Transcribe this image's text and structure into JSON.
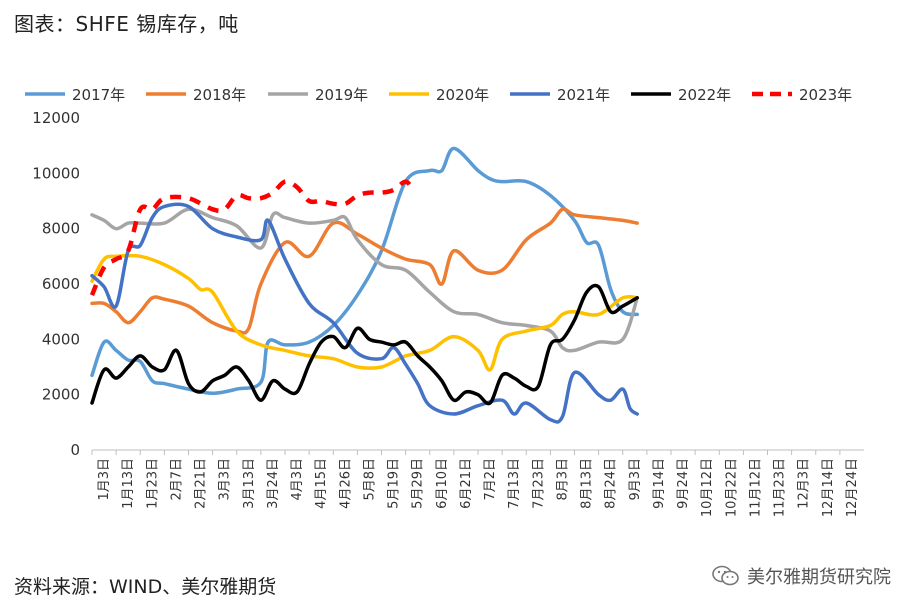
{
  "figure_title": "图表：SHFE 锡库存，吨",
  "source": "资料来源：WIND、美尔雅期货",
  "watermark": "美尔雅期货研究院",
  "watermark_icon": "wechat-icon",
  "chart_data": {
    "type": "line",
    "xlabel": "",
    "ylabel": "",
    "ylim": [
      0,
      12000
    ],
    "yticks": [
      0,
      2000,
      4000,
      6000,
      8000,
      10000,
      12000
    ],
    "grid": false,
    "legend_position": "top",
    "x_ticks": [
      "1月3日",
      "1月13日",
      "1月23日",
      "2月7日",
      "2月21日",
      "3月3日",
      "3月13日",
      "3月24日",
      "4月3日",
      "4月15日",
      "4月26日",
      "5月8日",
      "5月19日",
      "5月29日",
      "6月10日",
      "6月21日",
      "7月2日",
      "7月13日",
      "7月23日",
      "8月3日",
      "8月13日",
      "8月24日",
      "9月3日",
      "9月14日",
      "9月24日",
      "10月12日",
      "10月22日",
      "11月12日",
      "11月23日",
      "12月3日",
      "12月14日",
      "12月24日"
    ],
    "x_range": [
      0,
      32
    ],
    "series": [
      {
        "name": "2017年",
        "color": "#5B9BD5",
        "dash": false,
        "points": [
          [
            0,
            2700
          ],
          [
            0.5,
            3900
          ],
          [
            1,
            3600
          ],
          [
            1.5,
            3250
          ],
          [
            2,
            3200
          ],
          [
            2.5,
            2500
          ],
          [
            3,
            2400
          ],
          [
            4,
            2200
          ],
          [
            5,
            2050
          ],
          [
            6,
            2200
          ],
          [
            7,
            2450
          ],
          [
            7.3,
            3900
          ],
          [
            8,
            3800
          ],
          [
            9,
            3900
          ],
          [
            10,
            4500
          ],
          [
            11,
            5600
          ],
          [
            12,
            7200
          ],
          [
            13,
            9700
          ],
          [
            14,
            10100
          ],
          [
            14.5,
            10100
          ],
          [
            15,
            10900
          ],
          [
            16,
            10100
          ],
          [
            16.5,
            9800
          ],
          [
            17,
            9700
          ],
          [
            18,
            9700
          ],
          [
            19,
            9200
          ],
          [
            20,
            8300
          ],
          [
            20.5,
            7500
          ],
          [
            21,
            7400
          ],
          [
            21.5,
            5800
          ],
          [
            22,
            5000
          ],
          [
            22.6,
            4900
          ]
        ]
      },
      {
        "name": "2018年",
        "color": "#ED7D31",
        "dash": false,
        "points": [
          [
            0,
            5300
          ],
          [
            0.5,
            5300
          ],
          [
            1,
            5000
          ],
          [
            1.5,
            4600
          ],
          [
            2,
            5000
          ],
          [
            2.5,
            5500
          ],
          [
            3,
            5450
          ],
          [
            4,
            5200
          ],
          [
            5,
            4600
          ],
          [
            6,
            4300
          ],
          [
            6.5,
            4400
          ],
          [
            7,
            6000
          ],
          [
            8,
            7500
          ],
          [
            9,
            7000
          ],
          [
            10,
            8200
          ],
          [
            11,
            7800
          ],
          [
            12,
            7300
          ],
          [
            13,
            6900
          ],
          [
            14,
            6700
          ],
          [
            14.5,
            6000
          ],
          [
            15,
            7200
          ],
          [
            16,
            6500
          ],
          [
            17,
            6500
          ],
          [
            18,
            7600
          ],
          [
            19,
            8200
          ],
          [
            19.5,
            8700
          ],
          [
            20,
            8500
          ],
          [
            21,
            8400
          ],
          [
            22,
            8300
          ],
          [
            22.6,
            8200
          ]
        ]
      },
      {
        "name": "2019年",
        "color": "#A5A5A5",
        "dash": false,
        "points": [
          [
            0,
            8500
          ],
          [
            0.5,
            8300
          ],
          [
            1,
            8000
          ],
          [
            1.5,
            8200
          ],
          [
            2,
            8200
          ],
          [
            3,
            8200
          ],
          [
            4,
            8700
          ],
          [
            5,
            8400
          ],
          [
            6,
            8100
          ],
          [
            7,
            7300
          ],
          [
            7.5,
            8500
          ],
          [
            8,
            8400
          ],
          [
            9,
            8200
          ],
          [
            10,
            8300
          ],
          [
            10.5,
            8400
          ],
          [
            11,
            7600
          ],
          [
            12,
            6700
          ],
          [
            13,
            6500
          ],
          [
            14,
            5700
          ],
          [
            15,
            5000
          ],
          [
            16,
            4900
          ],
          [
            17,
            4600
          ],
          [
            18,
            4500
          ],
          [
            19,
            4300
          ],
          [
            19.5,
            3700
          ],
          [
            20,
            3600
          ],
          [
            21,
            3900
          ],
          [
            22,
            4000
          ],
          [
            22.6,
            5500
          ]
        ]
      },
      {
        "name": "2020年",
        "color": "#FFC000",
        "dash": false,
        "points": [
          [
            0,
            6100
          ],
          [
            0.5,
            6900
          ],
          [
            1,
            7000
          ],
          [
            2,
            7000
          ],
          [
            3,
            6700
          ],
          [
            4,
            6200
          ],
          [
            4.5,
            5800
          ],
          [
            5,
            5700
          ],
          [
            6,
            4300
          ],
          [
            7,
            3800
          ],
          [
            8,
            3600
          ],
          [
            9,
            3400
          ],
          [
            10,
            3300
          ],
          [
            11,
            3000
          ],
          [
            12,
            3000
          ],
          [
            13,
            3400
          ],
          [
            14,
            3600
          ],
          [
            15,
            4100
          ],
          [
            16,
            3600
          ],
          [
            16.5,
            2900
          ],
          [
            17,
            4000
          ],
          [
            18,
            4300
          ],
          [
            19,
            4500
          ],
          [
            19.5,
            4900
          ],
          [
            20,
            5000
          ],
          [
            21,
            4900
          ],
          [
            22,
            5500
          ],
          [
            22.6,
            5500
          ]
        ]
      },
      {
        "name": "2021年",
        "color": "#4472C4",
        "dash": false,
        "points": [
          [
            0,
            6300
          ],
          [
            0.5,
            5900
          ],
          [
            1,
            5200
          ],
          [
            1.5,
            7200
          ],
          [
            2,
            7400
          ],
          [
            2.5,
            8400
          ],
          [
            3,
            8800
          ],
          [
            4,
            8800
          ],
          [
            5,
            8000
          ],
          [
            6,
            7700
          ],
          [
            7,
            7600
          ],
          [
            7.3,
            8300
          ],
          [
            8,
            6900
          ],
          [
            9,
            5300
          ],
          [
            10,
            4600
          ],
          [
            11,
            3500
          ],
          [
            12,
            3300
          ],
          [
            12.5,
            3700
          ],
          [
            13,
            3100
          ],
          [
            13.5,
            2400
          ],
          [
            14,
            1600
          ],
          [
            15,
            1300
          ],
          [
            16,
            1600
          ],
          [
            17,
            1800
          ],
          [
            17.5,
            1300
          ],
          [
            18,
            1700
          ],
          [
            19,
            1100
          ],
          [
            19.5,
            1200
          ],
          [
            20,
            2800
          ],
          [
            21,
            2000
          ],
          [
            21.5,
            1800
          ],
          [
            22,
            2200
          ],
          [
            22.3,
            1500
          ],
          [
            22.6,
            1300
          ]
        ]
      },
      {
        "name": "2022年",
        "color": "#000000",
        "dash": false,
        "points": [
          [
            0,
            1700
          ],
          [
            0.5,
            2900
          ],
          [
            1,
            2600
          ],
          [
            1.5,
            3000
          ],
          [
            2,
            3400
          ],
          [
            2.5,
            3000
          ],
          [
            3,
            2900
          ],
          [
            3.5,
            3600
          ],
          [
            4,
            2400
          ],
          [
            4.5,
            2100
          ],
          [
            5,
            2500
          ],
          [
            5.5,
            2700
          ],
          [
            6,
            3000
          ],
          [
            6.5,
            2500
          ],
          [
            7,
            1800
          ],
          [
            7.5,
            2500
          ],
          [
            8,
            2200
          ],
          [
            8.5,
            2100
          ],
          [
            9,
            3100
          ],
          [
            9.5,
            3900
          ],
          [
            10,
            4100
          ],
          [
            10.5,
            3700
          ],
          [
            11,
            4400
          ],
          [
            11.5,
            4000
          ],
          [
            12,
            3900
          ],
          [
            12.5,
            3800
          ],
          [
            13,
            3900
          ],
          [
            13.5,
            3400
          ],
          [
            14,
            3000
          ],
          [
            14.5,
            2500
          ],
          [
            15,
            1800
          ],
          [
            15.5,
            2100
          ],
          [
            16,
            2000
          ],
          [
            16.5,
            1700
          ],
          [
            17,
            2700
          ],
          [
            17.5,
            2600
          ],
          [
            18,
            2300
          ],
          [
            18.5,
            2300
          ],
          [
            19,
            3800
          ],
          [
            19.5,
            4000
          ],
          [
            20,
            4700
          ],
          [
            20.5,
            5700
          ],
          [
            21,
            5900
          ],
          [
            21.5,
            5000
          ],
          [
            22,
            5200
          ],
          [
            22.6,
            5500
          ]
        ]
      },
      {
        "name": "2023年",
        "color": "#FF0000",
        "dash": true,
        "points": [
          [
            0,
            5600
          ],
          [
            0.5,
            6600
          ],
          [
            1,
            6900
          ],
          [
            1.5,
            7200
          ],
          [
            2,
            8700
          ],
          [
            2.5,
            8700
          ],
          [
            3,
            9100
          ],
          [
            4,
            9100
          ],
          [
            5,
            8700
          ],
          [
            5.5,
            8700
          ],
          [
            6,
            9200
          ],
          [
            6.5,
            9100
          ],
          [
            7,
            9100
          ],
          [
            7.5,
            9300
          ],
          [
            8,
            9700
          ],
          [
            8.5,
            9500
          ],
          [
            9,
            9000
          ],
          [
            9.5,
            9000
          ],
          [
            10,
            8900
          ],
          [
            10.5,
            8900
          ],
          [
            11,
            9200
          ],
          [
            11.5,
            9300
          ],
          [
            12,
            9300
          ],
          [
            12.5,
            9400
          ],
          [
            13,
            9700
          ],
          [
            13.3,
            9400
          ]
        ]
      }
    ]
  }
}
